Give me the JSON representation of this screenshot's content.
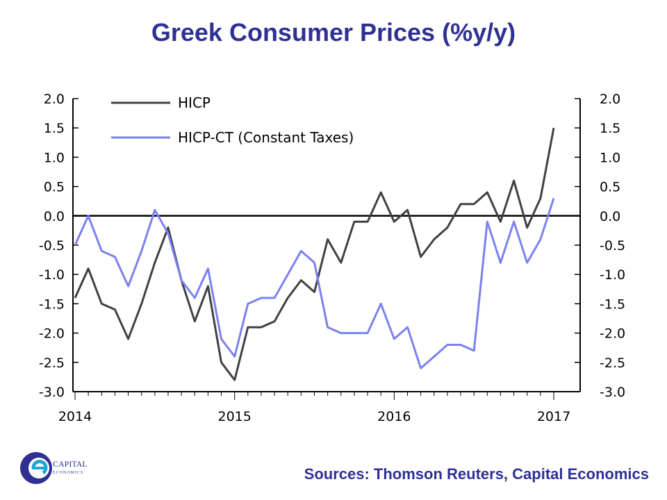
{
  "chart_data": {
    "type": "line",
    "title": "Greek Consumer Prices (%y/y)",
    "source": "Sources: Thomson Reuters, Capital Economics",
    "xlabel": "",
    "ylabel": "",
    "ylim": [
      -3.0,
      2.0
    ],
    "yticks": [
      "2.0",
      "1.5",
      "1.0",
      "0.5",
      "0.0",
      "-0.5",
      "-1.0",
      "-1.5",
      "-2.0",
      "-2.5",
      "-3.0"
    ],
    "yticks_right": [
      "2.0",
      "1.5",
      "1.0",
      "0.5",
      "0.0",
      "-0.5",
      "-1.0",
      "-1.5",
      "-2.0",
      "-2.5",
      "-3.0"
    ],
    "xticks": [
      "2014",
      "2015",
      "2016",
      "2017"
    ],
    "xlim_months": [
      0,
      36
    ],
    "zero_line": true,
    "legend_position": "top-left",
    "series": [
      {
        "name": "HICP",
        "color": "#404040",
        "values": [
          -1.4,
          -0.9,
          -1.5,
          -1.6,
          -2.1,
          -1.5,
          -0.8,
          -0.2,
          -1.1,
          -1.8,
          -1.2,
          -2.5,
          -2.8,
          -1.9,
          -1.9,
          -1.8,
          -1.4,
          -1.1,
          -1.3,
          -0.4,
          -0.8,
          -0.1,
          -0.1,
          0.4,
          -0.1,
          0.1,
          -0.7,
          -0.4,
          -0.2,
          0.2,
          0.2,
          0.4,
          -0.1,
          0.6,
          -0.2,
          0.3,
          1.5
        ]
      },
      {
        "name": "HICP-CT (Constant Taxes)",
        "color": "#7b80f0",
        "values": [
          -0.5,
          0.0,
          -0.6,
          -0.7,
          -1.2,
          -0.6,
          0.1,
          -0.3,
          -1.1,
          -1.4,
          -0.9,
          -2.1,
          -2.4,
          -1.5,
          -1.4,
          -1.4,
          -1.0,
          -0.6,
          -0.8,
          -1.9,
          -2.0,
          -2.0,
          -2.0,
          -1.5,
          -2.1,
          -1.9,
          -2.6,
          -2.4,
          -2.2,
          -2.2,
          -2.3,
          -0.1,
          -0.8,
          -0.1,
          -0.8,
          -0.4,
          0.3
        ]
      }
    ]
  },
  "logo": {
    "text_line1": "CAPITAL",
    "text_line2": "ECONOMICS"
  }
}
